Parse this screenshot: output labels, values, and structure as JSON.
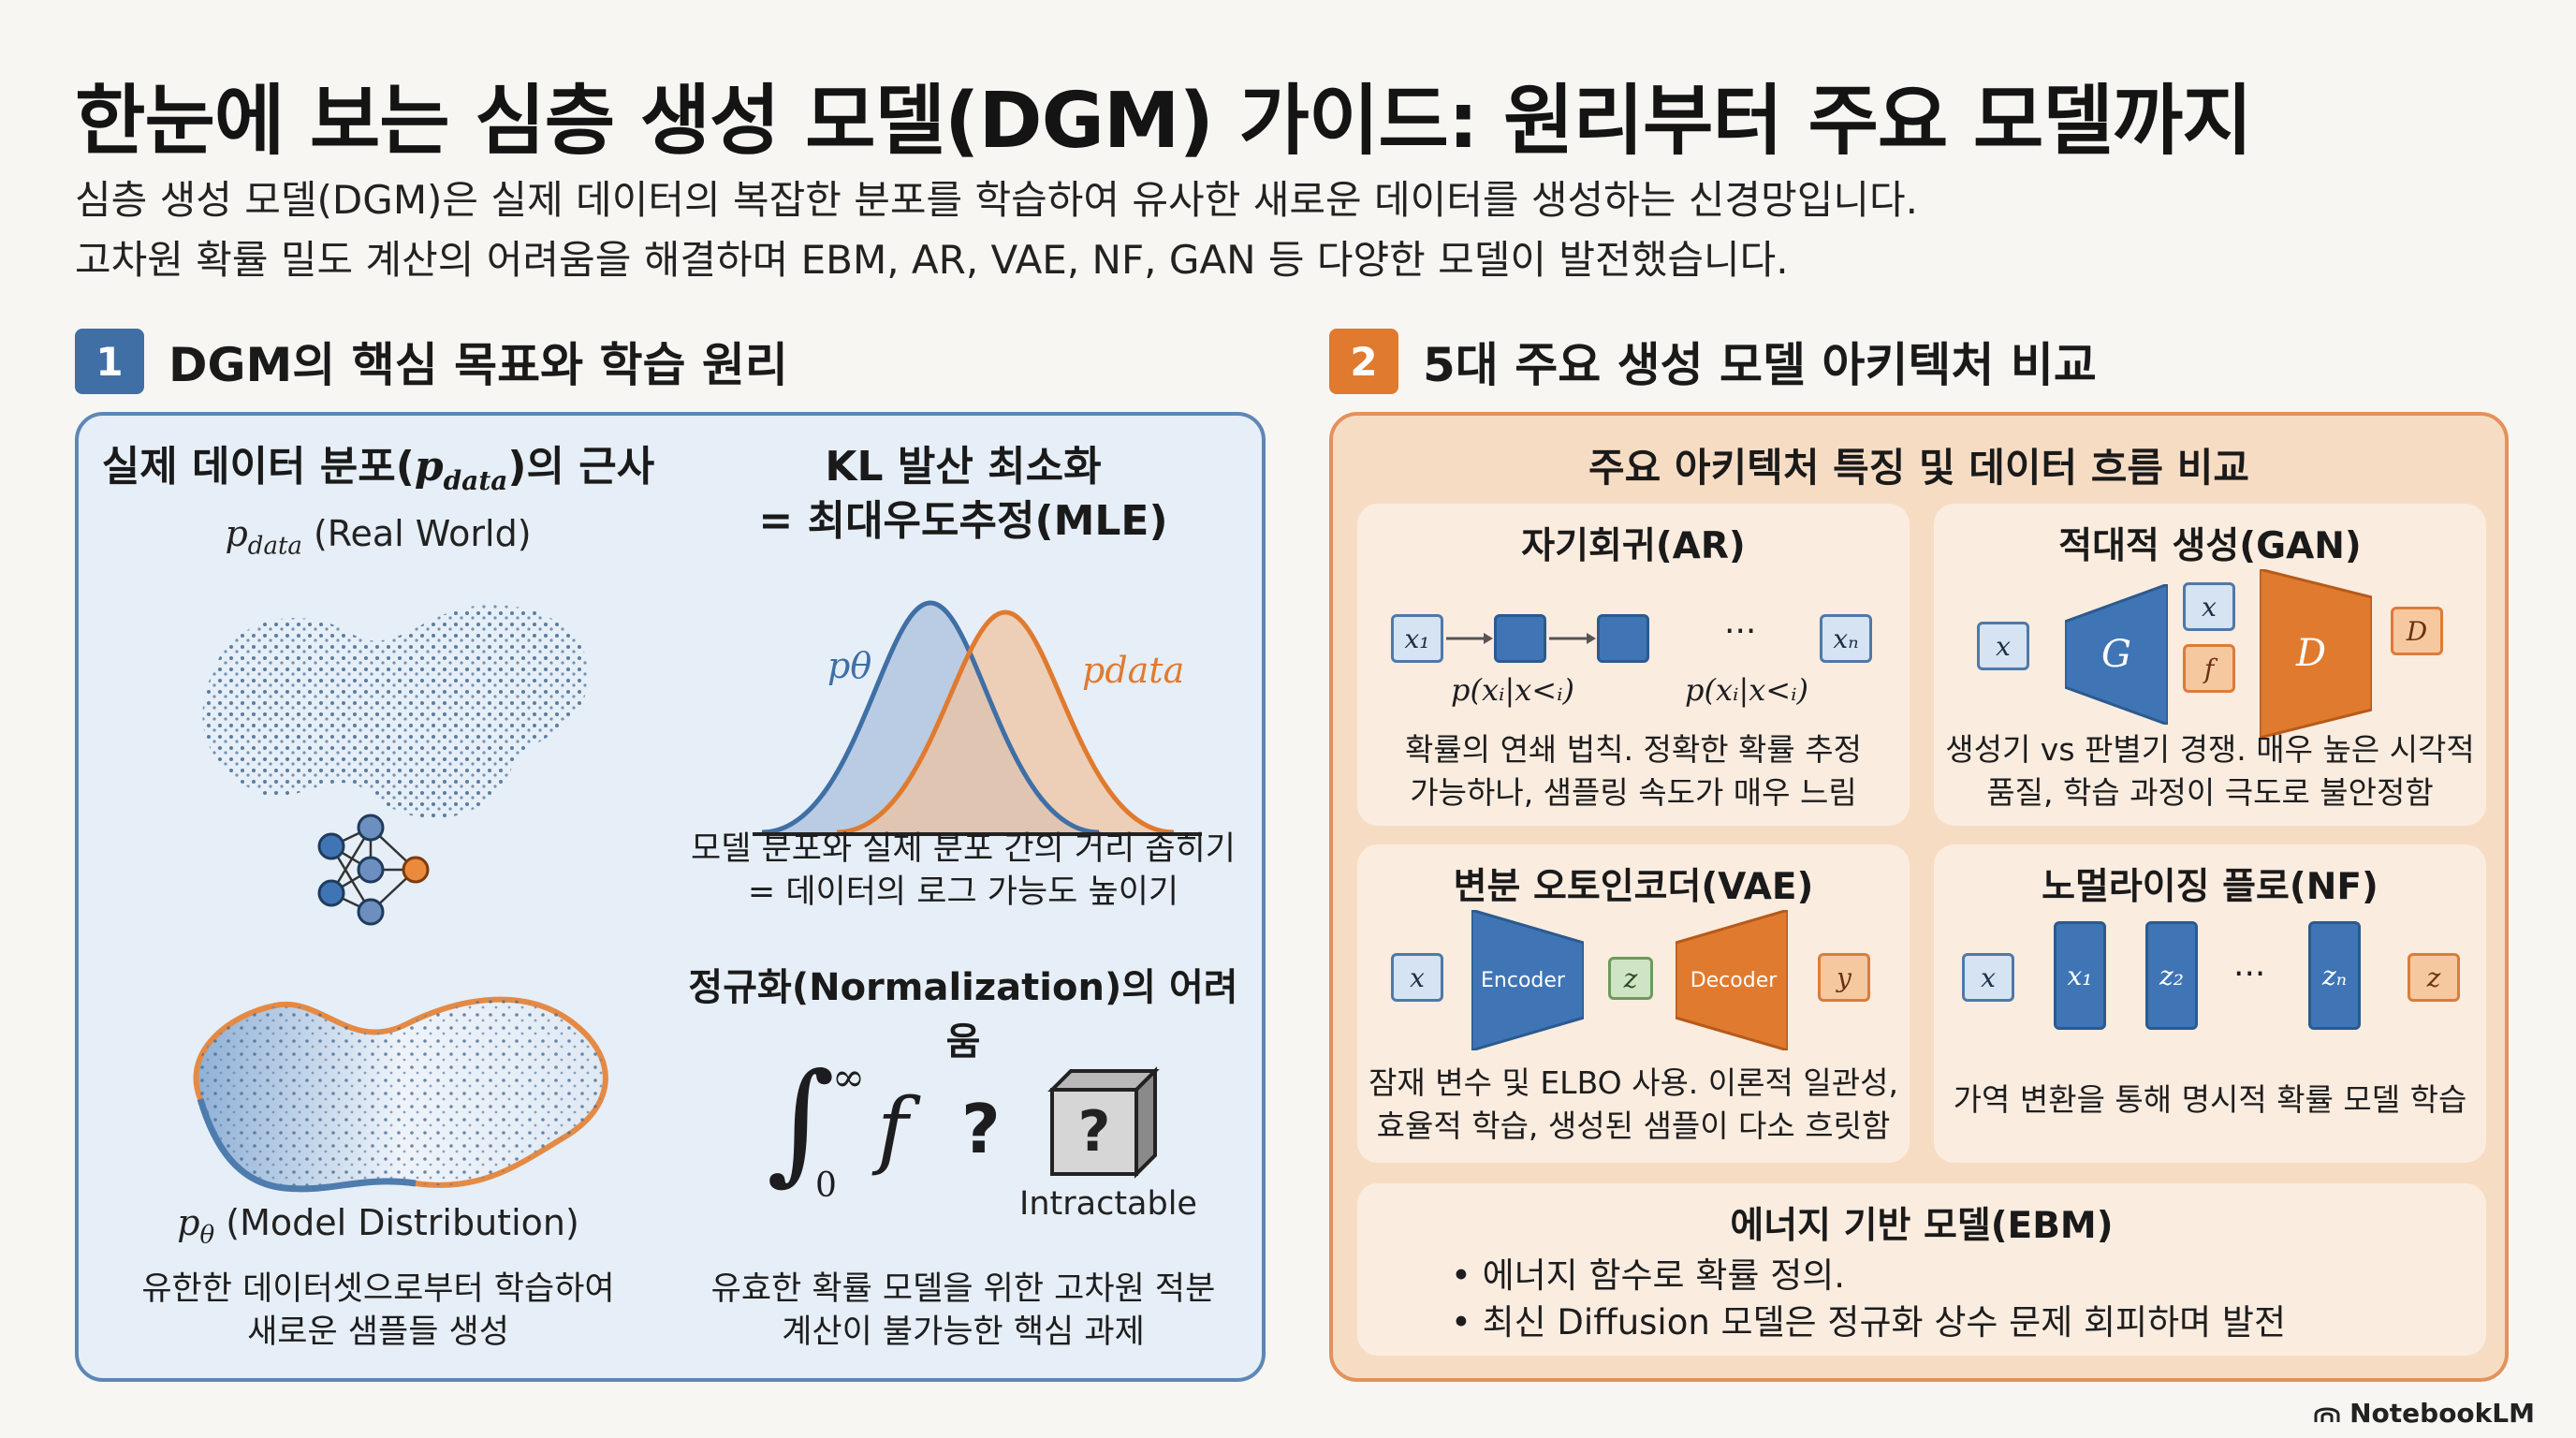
{
  "header": {
    "title": "한눈에 보는 심층 생성 모델(DGM) 가이드: 원리부터 주요 모델까지",
    "subtitle_line1": "심층 생성 모델(DGM)은 실제 데이터의 복잡한 분포를 학습하여 유사한 새로운 데이터를 생성하는 신경망입니다.",
    "subtitle_line2": "고차원 확률 밀도 계산의 어려움을 해결하며 EBM, AR, VAE, NF, GAN 등 다양한 모델이 발전했습니다."
  },
  "section1": {
    "number": "1",
    "heading": "DGM의 핵심 목표와 학습 원리",
    "accent": "#3f6fa5",
    "col_left": {
      "heading_pre": "실제 데이터 분포(",
      "heading_math": "p",
      "heading_sub": "data",
      "heading_post": ")의 근사",
      "real_label_math": "p",
      "real_label_sub": "data",
      "real_label_text": " (Real World)",
      "model_label_math": "p",
      "model_label_sub": "θ",
      "model_label_text": " (Model Distribution)",
      "caption_line1": "유한한 데이터셋으로부터 학습하여",
      "caption_line2": "새로운 샘플들 생성"
    },
    "col_right": {
      "kl_heading_line1": "KL 발산 최소화",
      "kl_heading_line2": "= 최대우도추정(MLE)",
      "curve_label_model": "pθ",
      "curve_label_data": "pdata",
      "kl_caption_line1": "모델 분포와 실제 분포 간의 거리 좁히기",
      "kl_caption_line2": "= 데이터의 로그 가능도 높이기",
      "norm_heading": "정규화(Normalization)의 어려움",
      "integral_upper": "∞",
      "integral_lower": "0",
      "integral_f": "f",
      "integral_q": "?",
      "cube_q": "?",
      "intractable": "Intractable",
      "norm_caption_line1": "유효한 확률 모델을 위한 고차원 적분",
      "norm_caption_line2": "계산이 불가능한 핵심 과제"
    }
  },
  "section2": {
    "number": "2",
    "heading": "5대 주요 생성 모델 아키텍처 비교",
    "accent": "#e07a2f",
    "panel_title": "주요 아키텍처 특징 및 데이터 흐름 비교",
    "ar": {
      "title": "자기회귀(AR)",
      "x1": "x₁",
      "xn": "xₙ",
      "dots": "···",
      "cond1": "p(xᵢ|x<ᵢ)",
      "cond2": "p(xᵢ|x<ᵢ)",
      "caption_line1": "확률의 연쇄 법칙. 정확한 확률 추정",
      "caption_line2": "가능하나, 샘플링 속도가 매우 느림"
    },
    "gan": {
      "title": "적대적 생성(GAN)",
      "x_in": "x",
      "g": "G",
      "x_top": "x",
      "f_bottom": "f",
      "d": "D",
      "d_out": "D",
      "caption_line1": "생성기 vs 판별기 경쟁. 매우 높은 시각적",
      "caption_line2": "품질, 학습 과정이 극도로 불안정함"
    },
    "vae": {
      "title": "변분 오토인코더(VAE)",
      "x_in": "x",
      "encoder": "Encoder",
      "z": "z",
      "decoder": "Decoder",
      "y_out": "y",
      "caption_line1": "잠재 변수 및 ELBO 사용. 이론적 일관성,",
      "caption_line2": "효율적 학습, 생성된 샘플이 다소 흐릿함"
    },
    "nf": {
      "title": "노멀라이징 플로(NF)",
      "x_in": "x",
      "x1": "x₁",
      "z2": "z₂",
      "dots": "···",
      "zn": "zₙ",
      "z_out": "z",
      "caption": "가역 변환을 통해 명시적 확률 모델 학습"
    },
    "ebm": {
      "title": "에너지 기반 모델(EBM)",
      "bullet1": "에너지 함수로 확률 정의.",
      "bullet2": "최신 Diffusion 모델은 정규화 상수 문제 회피하며 발전"
    }
  },
  "footer": {
    "brand": "NotebookLM"
  }
}
